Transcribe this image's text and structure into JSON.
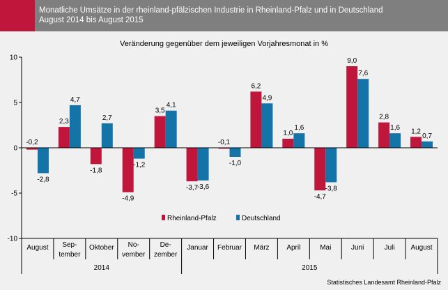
{
  "header": {
    "title_line1": "Monatliche Umsätze in der rheinland-pfälzischen Industrie in Rheinland-Pfalz und in Deutschland",
    "title_line2": "August 2014 bis August 2015"
  },
  "source": "Statistisches Landesamt Rheinland-Pfalz",
  "colors": {
    "rlp": "#c0163b",
    "de": "#1474a8",
    "header_bg": "#7f7f7f",
    "header_accent": "#c0163b",
    "background": "#f0f0f0"
  },
  "chart_data": {
    "type": "bar",
    "title": "Veränderung gegenüber dem jeweiligen Vorjahresmonat in %",
    "ylim": [
      -10,
      10
    ],
    "yticks": [
      "10",
      "5",
      "0",
      "-5",
      "-10"
    ],
    "categories": [
      [
        "August"
      ],
      [
        "Sep-",
        "tember"
      ],
      [
        "Oktober"
      ],
      [
        "No-",
        "vember"
      ],
      [
        "De-",
        "zember"
      ],
      [
        "Januar"
      ],
      [
        "Februar"
      ],
      [
        "März"
      ],
      [
        "April"
      ],
      [
        "Mai"
      ],
      [
        "Juni"
      ],
      [
        "Juli"
      ],
      [
        "August"
      ]
    ],
    "years": [
      {
        "label": "2014",
        "from": 0,
        "to": 4
      },
      {
        "label": "2015",
        "from": 5,
        "to": 12
      }
    ],
    "series": [
      {
        "name": "Rheinland-Pfalz",
        "color": "#c0163b",
        "values": [
          -0.2,
          2.3,
          -1.8,
          -4.9,
          3.5,
          -3.7,
          -0.1,
          6.2,
          1.0,
          -4.7,
          9.0,
          2.8,
          1.2
        ],
        "labels": [
          "-0,2",
          "2,3",
          "-1,8",
          "-4,9",
          "3,5",
          "-3,7",
          "-0,1",
          "6,2",
          "1,0",
          "-4,7",
          "9,0",
          "2,8",
          "1,2"
        ]
      },
      {
        "name": "Deutschland",
        "color": "#1474a8",
        "values": [
          -2.8,
          4.7,
          2.7,
          -1.2,
          4.1,
          -3.6,
          -1.0,
          4.9,
          1.6,
          -3.8,
          7.6,
          1.6,
          0.7
        ],
        "labels": [
          "-2,8",
          "4,7",
          "2,7",
          "-1,2",
          "4,1",
          "-3,6",
          "-1,0",
          "4,9",
          "1,6",
          "-3,8",
          "7,6",
          "1,6",
          "0,7"
        ]
      }
    ],
    "legend_position": "bottom-center-inside",
    "grid": false
  }
}
